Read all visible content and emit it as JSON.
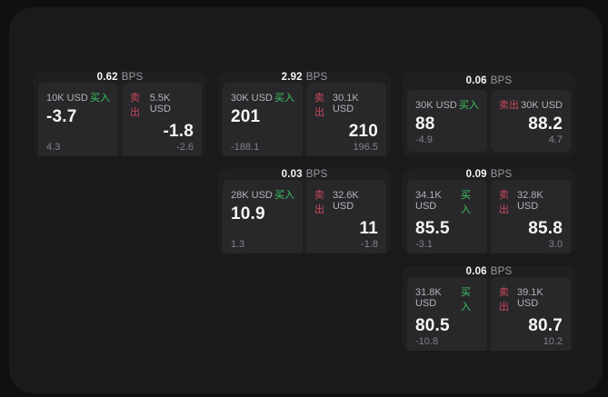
{
  "colors": {
    "page_background": "#0f0f11",
    "window_background": "#1a1a1c",
    "card_background": "#1f1f21",
    "tile_background": "#28282b",
    "buy_green": "#3dc462",
    "sell_red": "#c9485b",
    "primary_text": "#f5f5f6",
    "muted_text": "#98989d"
  },
  "cards": [
    {
      "bps_value": "0.62",
      "bps_unit": "BPS",
      "layout": {
        "row": 1,
        "col": 1
      },
      "buy": {
        "amount": "10K USD",
        "side_label": "买入",
        "price": "-3.7",
        "delta": "4.3"
      },
      "sell": {
        "side_label": "卖出",
        "amount": "5.5K USD",
        "price": "-1.8",
        "delta": "-2.6"
      }
    },
    {
      "bps_value": "2.92",
      "bps_unit": "BPS",
      "layout": {
        "row": 1,
        "col": 2
      },
      "buy": {
        "amount": "30K USD",
        "side_label": "买入",
        "price": "201",
        "delta": "-188.1"
      },
      "sell": {
        "side_label": "卖出",
        "amount": "30.1K USD",
        "price": "210",
        "delta": "196.5"
      }
    },
    {
      "bps_value": "0.06",
      "bps_unit": "BPS",
      "layout": {
        "row": 1,
        "col": 3
      },
      "buy": {
        "amount": "30K USD",
        "side_label": "买入",
        "price": "88",
        "delta": "-4.9"
      },
      "sell": {
        "side_label": "卖出",
        "amount": "30K USD",
        "price": "88.2",
        "delta": "4.7"
      }
    },
    {
      "bps_value": "0.03",
      "bps_unit": "BPS",
      "layout": {
        "row": 2,
        "col": 2
      },
      "buy": {
        "amount": "28K USD",
        "side_label": "买入",
        "price": "10.9",
        "delta": "1.3"
      },
      "sell": {
        "side_label": "卖出",
        "amount": "32.6K USD",
        "price": "11",
        "delta": "-1.8"
      }
    },
    {
      "bps_value": "0.09",
      "bps_unit": "BPS",
      "layout": {
        "row": 2,
        "col": 3
      },
      "buy": {
        "amount": "34.1K USD",
        "side_label": "买入",
        "price": "85.5",
        "delta": "-3.1"
      },
      "sell": {
        "side_label": "卖出",
        "amount": "32.8K USD",
        "price": "85.8",
        "delta": "3.0"
      }
    },
    {
      "bps_value": "0.06",
      "bps_unit": "BPS",
      "layout": {
        "row": 3,
        "col": 3
      },
      "buy": {
        "amount": "31.8K USD",
        "side_label": "买入",
        "price": "80.5",
        "delta": "-10.8"
      },
      "sell": {
        "side_label": "卖出",
        "amount": "39.1K USD",
        "price": "80.7",
        "delta": "10.2"
      }
    }
  ]
}
